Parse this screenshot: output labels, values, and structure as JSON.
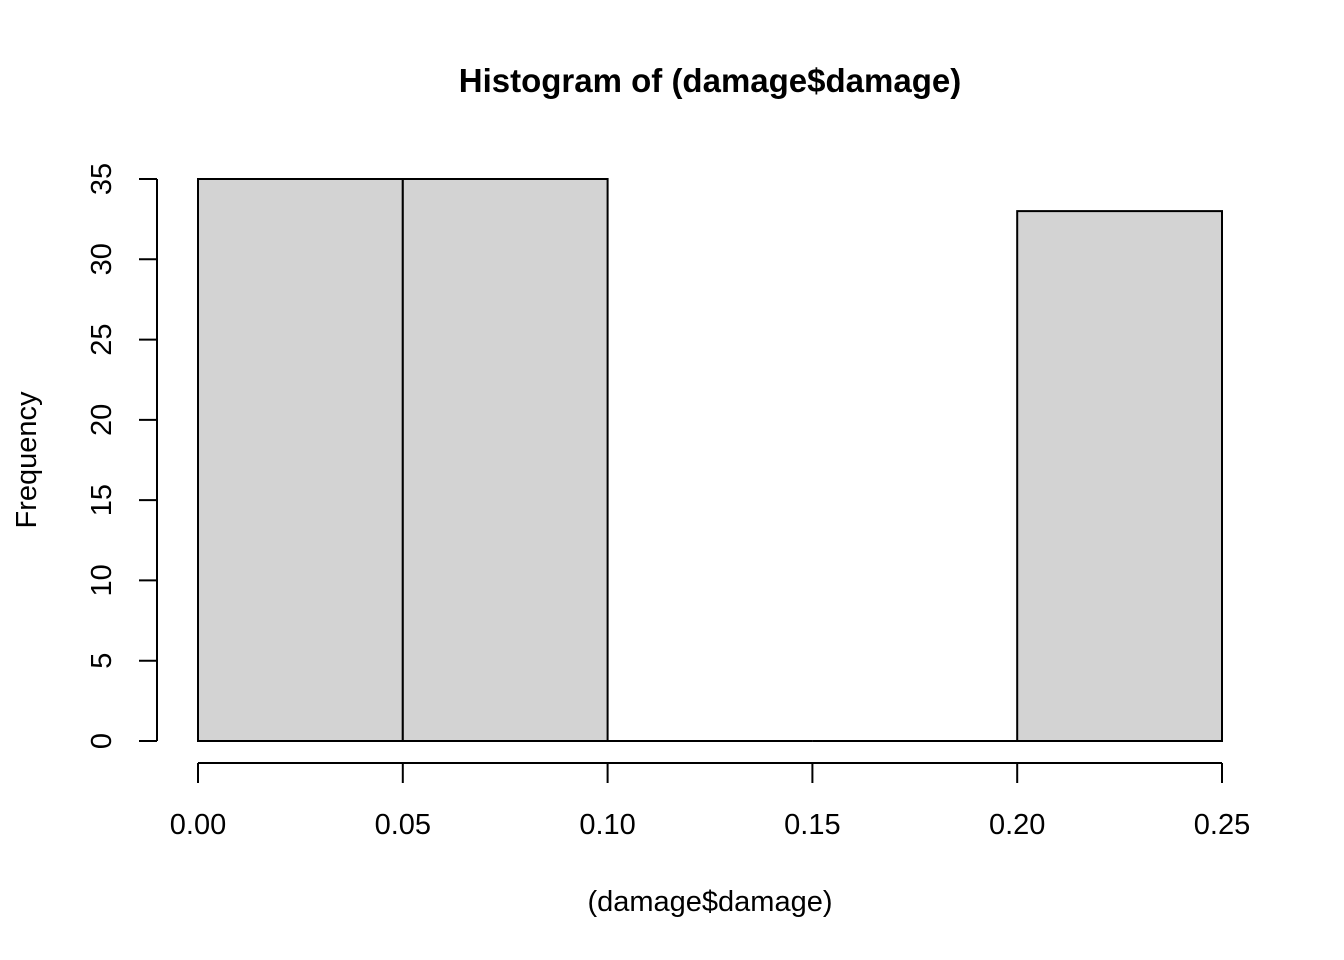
{
  "chart_data": {
    "type": "bar",
    "title": "Histogram of (damage$damage)",
    "xlabel": "(damage$damage)",
    "ylabel": "Frequency",
    "bins": [
      {
        "x0": 0.0,
        "x1": 0.05,
        "count": 35
      },
      {
        "x0": 0.05,
        "x1": 0.1,
        "count": 35
      },
      {
        "x0": 0.1,
        "x1": 0.15,
        "count": 0
      },
      {
        "x0": 0.15,
        "x1": 0.2,
        "count": 0
      },
      {
        "x0": 0.2,
        "x1": 0.25,
        "count": 33
      }
    ],
    "xlim": [
      0.0,
      0.25
    ],
    "ylim": [
      0,
      35
    ],
    "x_ticks": [
      0.0,
      0.05,
      0.1,
      0.15,
      0.2,
      0.25
    ],
    "x_tick_labels": [
      "0.00",
      "0.05",
      "0.10",
      "0.15",
      "0.20",
      "0.25"
    ],
    "y_ticks": [
      0,
      5,
      10,
      15,
      20,
      25,
      30,
      35
    ],
    "y_tick_labels": [
      "0",
      "5",
      "10",
      "15",
      "20",
      "25",
      "30",
      "35"
    ],
    "grid": false,
    "legend": "none",
    "colors": {
      "bar_fill": "#d3d3d3",
      "bar_stroke": "#000000",
      "axis": "#000000"
    }
  }
}
